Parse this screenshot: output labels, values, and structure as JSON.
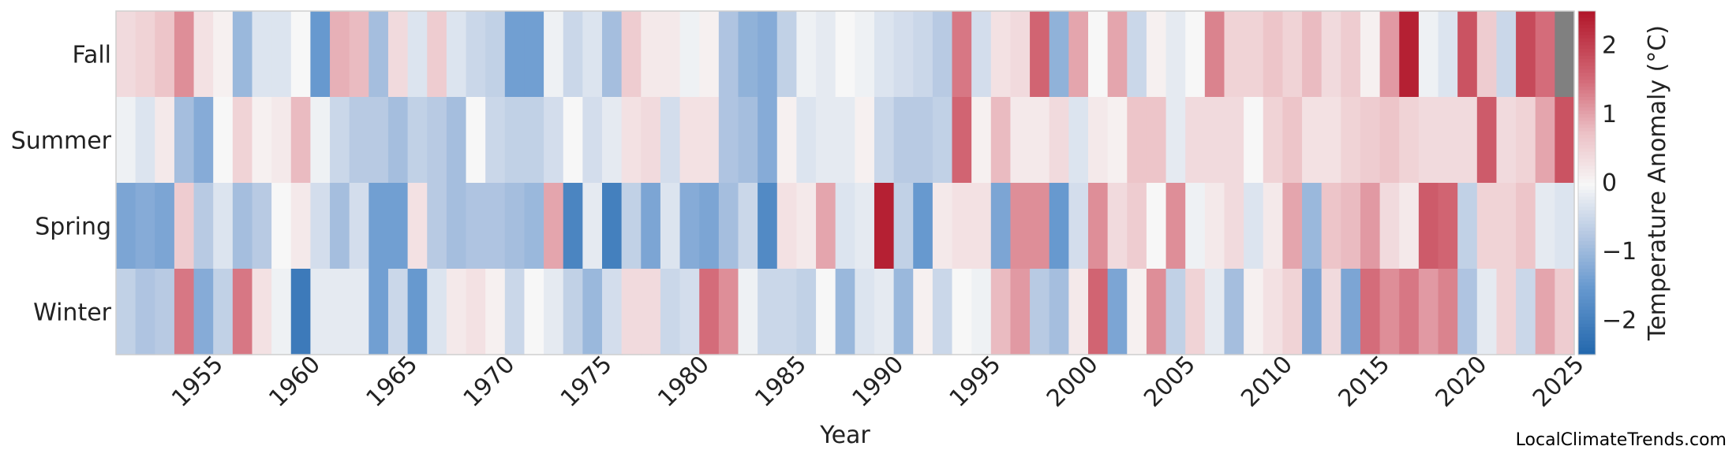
{
  "chart_data": {
    "type": "heatmap",
    "xlabel": "Year",
    "ylabel": "",
    "colorbar_label": "Temperature Anomaly (°C)",
    "x": [
      1950,
      1951,
      1952,
      1953,
      1954,
      1955,
      1956,
      1957,
      1958,
      1959,
      1960,
      1961,
      1962,
      1963,
      1964,
      1965,
      1966,
      1967,
      1968,
      1969,
      1970,
      1971,
      1972,
      1973,
      1974,
      1975,
      1976,
      1977,
      1978,
      1979,
      1980,
      1981,
      1982,
      1983,
      1984,
      1985,
      1986,
      1987,
      1988,
      1989,
      1990,
      1991,
      1992,
      1993,
      1994,
      1995,
      1996,
      1997,
      1998,
      1999,
      2000,
      2001,
      2002,
      2003,
      2004,
      2005,
      2006,
      2007,
      2008,
      2009,
      2010,
      2011,
      2012,
      2013,
      2014,
      2015,
      2016,
      2017,
      2018,
      2019,
      2020,
      2021,
      2022,
      2023,
      2024
    ],
    "x_ticks": [
      1955,
      1960,
      1965,
      1970,
      1975,
      1980,
      1985,
      1990,
      1995,
      2000,
      2005,
      2010,
      2015,
      2020,
      2025
    ],
    "rows": [
      "Fall",
      "Summer",
      "Spring",
      "Winter"
    ],
    "values": {
      "Fall": [
        0.4,
        0.5,
        0.7,
        1.2,
        0.3,
        0.1,
        -1.0,
        -0.3,
        -0.3,
        0.0,
        -1.5,
        0.9,
        0.8,
        -0.9,
        0.4,
        -0.3,
        0.6,
        -0.3,
        -0.5,
        -0.6,
        -1.4,
        -1.4,
        -0.1,
        -0.5,
        -0.3,
        -0.9,
        0.6,
        0.2,
        0.2,
        -0.1,
        0.1,
        -0.8,
        -1.1,
        -1.2,
        -0.6,
        -0.1,
        -0.2,
        0.0,
        -0.1,
        -0.3,
        -0.4,
        -0.5,
        -0.7,
        1.4,
        -0.4,
        0.3,
        0.4,
        1.6,
        -1.1,
        1.0,
        0.0,
        1.0,
        -0.5,
        0.1,
        -0.2,
        0.0,
        1.3,
        0.5,
        0.5,
        0.7,
        0.5,
        0.8,
        0.4,
        0.6,
        0.1,
        1.1,
        2.4,
        -0.1,
        -0.3,
        1.8,
        0.6,
        -0.5,
        1.9,
        1.5,
        null
      ],
      "Summer": [
        -0.1,
        -0.3,
        0.2,
        -0.9,
        -1.2,
        0.0,
        0.5,
        0.1,
        0.2,
        0.8,
        -0.1,
        -0.5,
        -0.7,
        -0.7,
        -0.9,
        -0.6,
        -0.7,
        -0.9,
        0.0,
        -0.5,
        -0.6,
        -0.6,
        -0.4,
        0.0,
        -0.4,
        -0.2,
        0.3,
        0.4,
        -0.4,
        0.3,
        0.3,
        -0.8,
        -0.9,
        -1.2,
        0.1,
        -0.3,
        -0.2,
        -0.2,
        0.1,
        -0.5,
        -0.7,
        -0.7,
        -0.6,
        1.6,
        0.1,
        0.8,
        0.2,
        0.2,
        0.4,
        -0.3,
        0.2,
        0.1,
        0.7,
        0.7,
        -0.2,
        0.4,
        0.4,
        0.4,
        0.0,
        0.5,
        0.7,
        0.3,
        0.3,
        0.5,
        0.6,
        0.7,
        0.5,
        0.4,
        0.4,
        0.4,
        1.7,
        0.4,
        0.5,
        1.0,
        1.8
      ],
      "Spring": [
        -1.3,
        -1.2,
        -1.3,
        0.6,
        -0.7,
        -0.3,
        -0.9,
        -0.7,
        0.0,
        0.2,
        -0.4,
        -0.9,
        -0.4,
        -1.4,
        -1.4,
        0.3,
        -0.7,
        -0.9,
        -0.8,
        -0.8,
        -0.9,
        -1.0,
        1.0,
        -1.9,
        -0.2,
        -2.0,
        -0.6,
        -1.3,
        -0.3,
        -1.2,
        -1.3,
        -0.9,
        -0.5,
        -1.8,
        0.3,
        0.2,
        1.0,
        -0.3,
        -0.2,
        2.4,
        -0.6,
        -1.5,
        0.2,
        0.3,
        0.3,
        -1.3,
        1.2,
        1.2,
        -1.5,
        -0.4,
        1.2,
        0.4,
        0.6,
        0.0,
        1.2,
        -0.1,
        0.2,
        0.4,
        -0.3,
        0.2,
        1.0,
        -1.0,
        0.7,
        0.8,
        1.1,
        0.4,
        0.2,
        1.7,
        1.6,
        -0.6,
        0.5,
        0.5,
        0.7,
        -0.2,
        -0.3
      ],
      "Winter": [
        -0.6,
        -0.8,
        -0.7,
        1.4,
        -1.2,
        -0.6,
        1.4,
        0.3,
        -0.1,
        -2.1,
        -0.2,
        -0.2,
        -0.2,
        -1.4,
        -0.5,
        -1.5,
        -0.3,
        0.2,
        0.3,
        0.1,
        -0.5,
        0.0,
        -0.2,
        -0.6,
        -1.0,
        -0.4,
        0.4,
        0.4,
        -0.5,
        -0.4,
        1.5,
        1.2,
        -0.1,
        -0.5,
        -0.5,
        -0.6,
        0.0,
        -1.0,
        -0.3,
        -0.2,
        -1.0,
        0.1,
        -0.5,
        0.0,
        -0.1,
        0.8,
        1.1,
        -0.7,
        -0.9,
        0.2,
        1.6,
        -1.3,
        0.1,
        1.2,
        -0.6,
        0.5,
        -0.2,
        -0.9,
        0.1,
        0.3,
        0.5,
        -1.3,
        0.4,
        -1.3,
        1.5,
        1.2,
        1.4,
        1.1,
        1.3,
        -0.8,
        -0.2,
        0.5,
        -0.5,
        1.0,
        0.6
      ]
    },
    "missing_color": "#808080",
    "colormap": {
      "name": "RdBu_r",
      "vmin": -2.5,
      "vmax": 2.5
    },
    "colorbar_ticks": [
      -2,
      -1,
      0,
      1,
      2
    ],
    "colorbar_tick_labels": [
      "−2",
      "−1",
      "0",
      "1",
      "2"
    ],
    "grid": false
  },
  "footer": "LocalClimateTrends.com"
}
